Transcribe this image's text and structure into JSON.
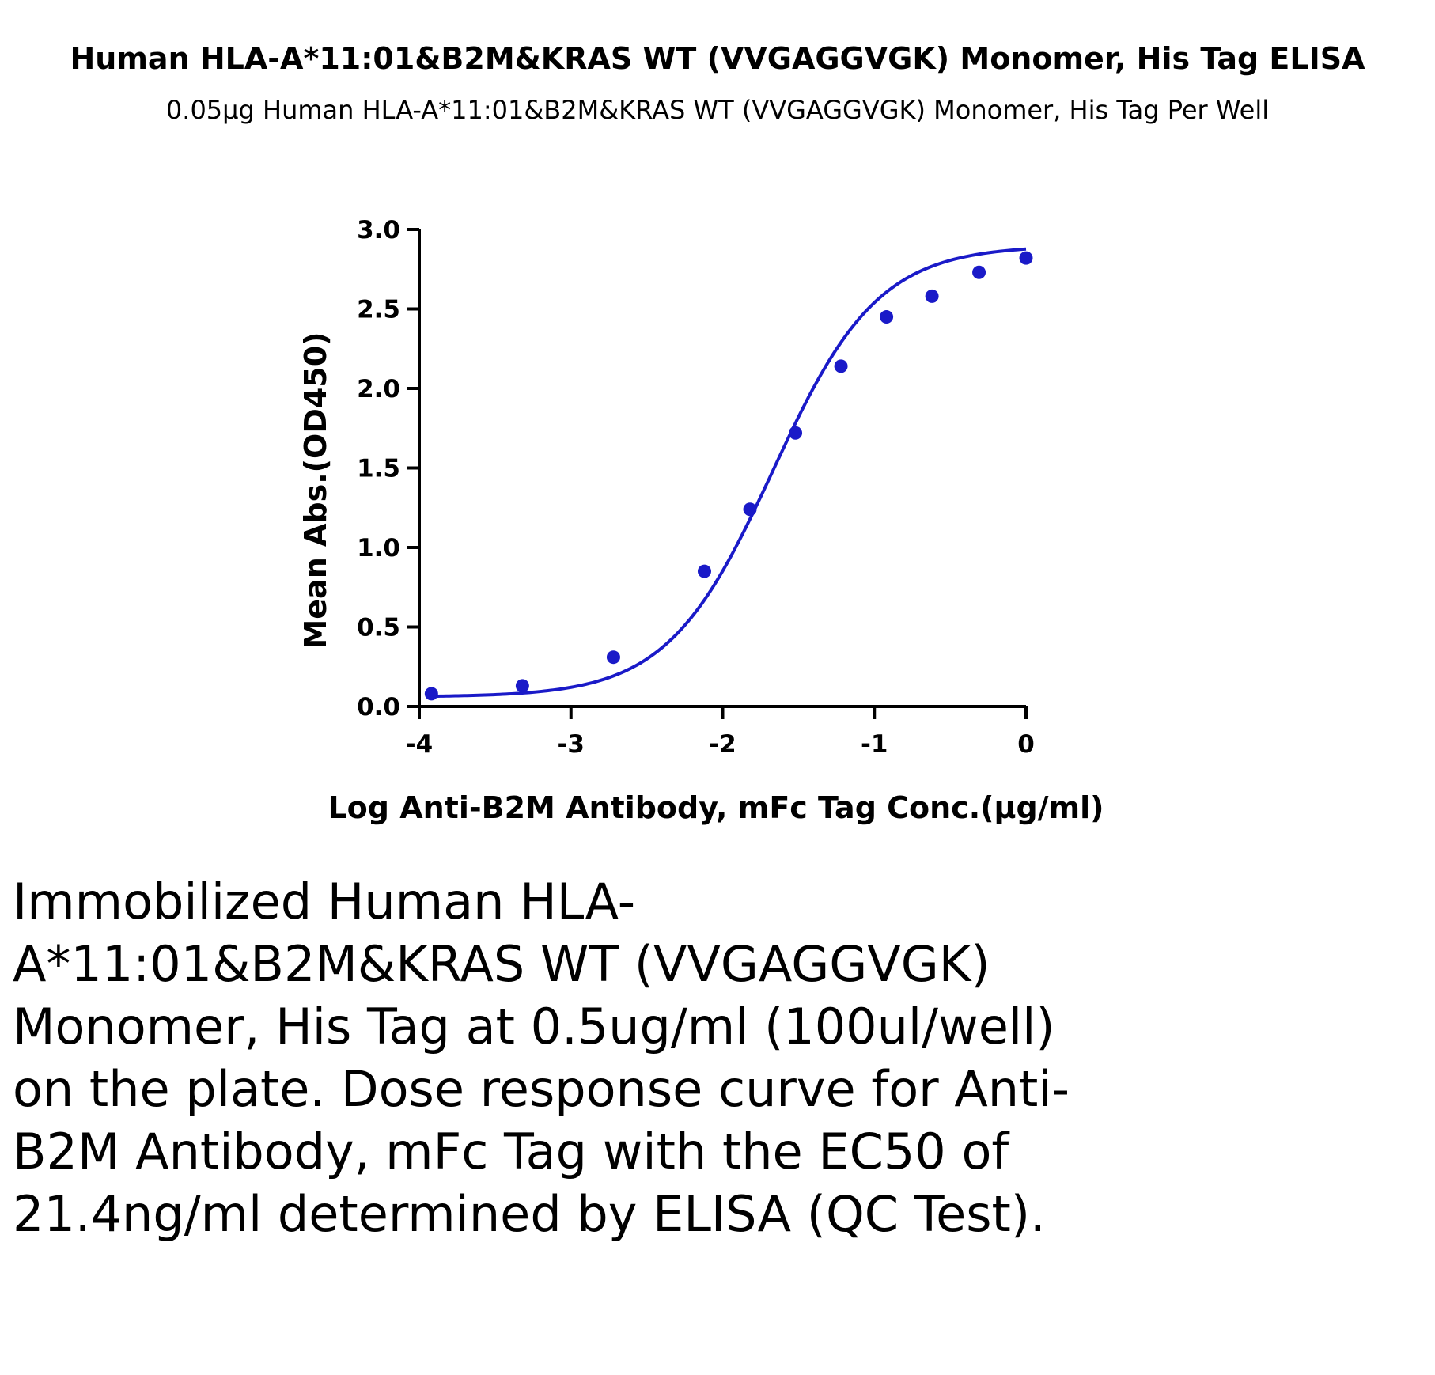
{
  "chart_data": {
    "type": "scatter",
    "title": "Human HLA-A*11:01&B2M&KRAS WT (VVGAGGVGK) Monomer, His Tag ELISA",
    "subtitle": "0.05μg Human HLA-A*11:01&B2M&KRAS WT (VVGAGGVGK) Monomer, His Tag Per Well",
    "xlabel": "Log Anti-B2M Antibody, mFc Tag Conc.(μg/ml)",
    "ylabel": "Mean Abs.(OD450)",
    "xlim": [
      -4,
      0
    ],
    "ylim": [
      0,
      3.0
    ],
    "xticks": [
      -4,
      -3,
      -2,
      -1,
      0
    ],
    "xtick_labels": [
      "-4",
      "-3",
      "-2",
      "-1",
      "0"
    ],
    "yticks": [
      0,
      0.5,
      1.0,
      1.5,
      2.0,
      2.5,
      3.0
    ],
    "ytick_labels": [
      "0.0",
      "0.5",
      "1.0",
      "1.5",
      "2.0",
      "2.5",
      "3.0"
    ],
    "grid": false,
    "series": [
      {
        "color": "#1a1ac8",
        "x": [
          -3.92,
          -3.32,
          -2.72,
          -2.12,
          -1.82,
          -1.52,
          -1.22,
          -0.92,
          -0.62,
          -0.31,
          0.0
        ],
        "y": [
          0.08,
          0.13,
          0.31,
          0.85,
          1.24,
          1.72,
          2.14,
          2.45,
          2.58,
          2.73,
          2.82
        ],
        "fit": {
          "model": "4PL",
          "bottom": 0.06,
          "top": 2.9,
          "log_ec50": -1.67,
          "hill": 1.25
        }
      }
    ]
  },
  "caption": "Immobilized Human HLA-A*11:01&B2M&KRAS WT (VVGAGGVGK) Monomer, His Tag at 0.5ug/ml (100ul/well) on the plate. Dose response curve for Anti-B2M Antibody, mFc Tag with the EC50 of 21.4ng/ml determined by ELISA (QC Test)."
}
